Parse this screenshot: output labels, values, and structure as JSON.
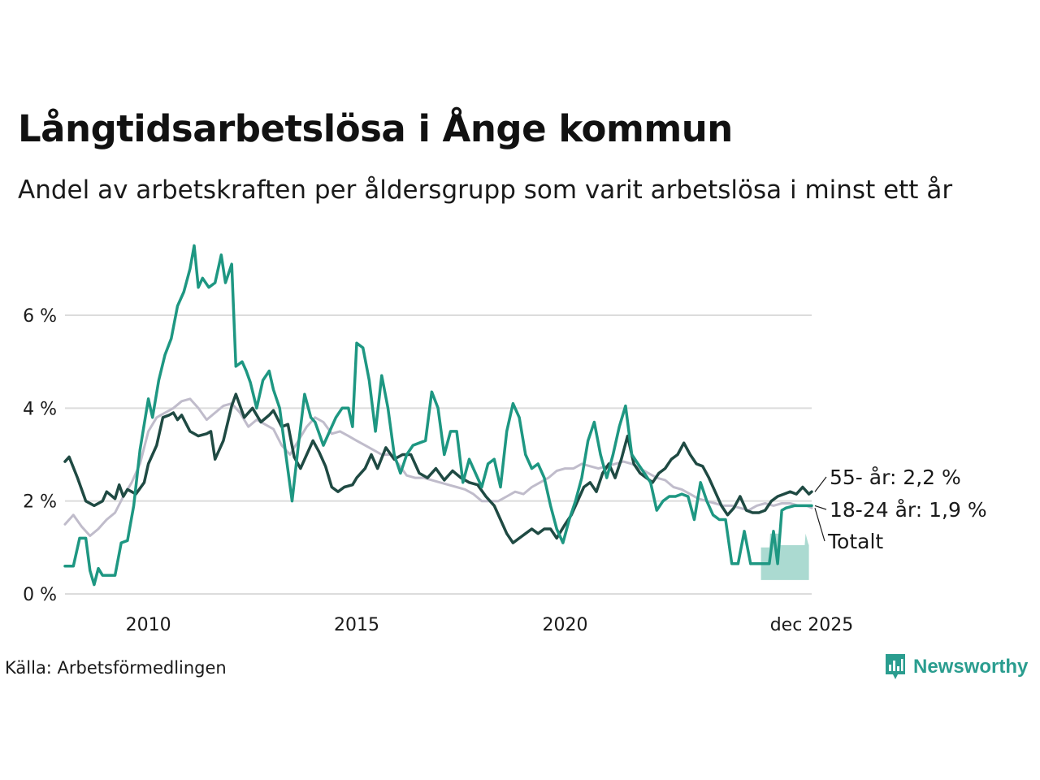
{
  "title": "Långtidsarbetslösa i Ånge kommun",
  "subtitle": "Andel av arbetskraften per åldersgrupp som varit arbetslösa i minst ett år",
  "source": "Källa: Arbetsförmedlingen",
  "brand": "Newsworthy",
  "colors": {
    "young": "#1e9782",
    "old": "#1f4a43",
    "total": "#c0bccb",
    "band": "#a6d8cf",
    "grid": "#dcdcdc"
  },
  "chart_data": {
    "type": "line",
    "x_range": [
      2008.0,
      2025.917
    ],
    "ylim": [
      0,
      7.6
    ],
    "y_ticks": [
      {
        "v": 0,
        "label": "0 %"
      },
      {
        "v": 2,
        "label": "2 %"
      },
      {
        "v": 4,
        "label": "4 %"
      },
      {
        "v": 6,
        "label": "6 %"
      }
    ],
    "x_ticks": [
      {
        "v": 2010,
        "label": "2010"
      },
      {
        "v": 2015,
        "label": "2015"
      },
      {
        "v": 2020,
        "label": "2020"
      },
      {
        "v": 2025.917,
        "label": "dec 2025"
      }
    ],
    "uncertainty_band": {
      "series": "18-24 år",
      "x": [
        2024.7,
        2024.9,
        2024.92,
        2025.15,
        2025.17,
        2025.75,
        2025.77,
        2025.83,
        2025.85
      ],
      "low": [
        0.3,
        0.3,
        0.3,
        0.3,
        0.3,
        0.3,
        0.3,
        0.3,
        0.3
      ],
      "high": [
        1.0,
        1.0,
        1.3,
        1.3,
        1.05,
        1.05,
        1.3,
        1.1,
        1.05
      ]
    },
    "series": [
      {
        "name": "Totalt",
        "label": "Totalt",
        "x": [
          2008.0,
          2008.2,
          2008.4,
          2008.6,
          2008.8,
          2009.0,
          2009.2,
          2009.4,
          2009.6,
          2009.8,
          2010.0,
          2010.2,
          2010.4,
          2010.6,
          2010.8,
          2011.0,
          2011.2,
          2011.4,
          2011.6,
          2011.8,
          2012.0,
          2012.2,
          2012.4,
          2012.6,
          2012.8,
          2013.0,
          2013.2,
          2013.4,
          2013.6,
          2013.8,
          2014.0,
          2014.2,
          2014.4,
          2014.6,
          2014.8,
          2015.0,
          2015.2,
          2015.4,
          2015.6,
          2015.8,
          2016.0,
          2016.2,
          2016.4,
          2016.6,
          2016.8,
          2017.0,
          2017.2,
          2017.4,
          2017.6,
          2017.8,
          2018.0,
          2018.2,
          2018.4,
          2018.6,
          2018.8,
          2019.0,
          2019.2,
          2019.4,
          2019.6,
          2019.8,
          2020.0,
          2020.2,
          2020.4,
          2020.6,
          2020.8,
          2021.0,
          2021.2,
          2021.4,
          2021.6,
          2021.8,
          2022.0,
          2022.2,
          2022.4,
          2022.6,
          2022.8,
          2023.0,
          2023.2,
          2023.4,
          2023.6,
          2023.8,
          2024.0,
          2024.2,
          2024.4,
          2024.6,
          2024.8,
          2025.0,
          2025.2,
          2025.4,
          2025.6,
          2025.8,
          2025.917
        ],
        "values": [
          1.5,
          1.7,
          1.45,
          1.25,
          1.4,
          1.6,
          1.75,
          2.1,
          2.4,
          2.8,
          3.5,
          3.8,
          3.9,
          4.0,
          4.15,
          4.2,
          4.0,
          3.75,
          3.9,
          4.05,
          4.1,
          3.9,
          3.6,
          3.75,
          3.65,
          3.55,
          3.2,
          3.0,
          3.3,
          3.6,
          3.8,
          3.7,
          3.45,
          3.5,
          3.4,
          3.3,
          3.2,
          3.1,
          3.0,
          3.0,
          2.8,
          2.55,
          2.5,
          2.5,
          2.45,
          2.4,
          2.35,
          2.3,
          2.25,
          2.15,
          2.0,
          2.0,
          2.0,
          2.1,
          2.2,
          2.15,
          2.3,
          2.4,
          2.5,
          2.65,
          2.7,
          2.7,
          2.8,
          2.75,
          2.7,
          2.75,
          2.8,
          2.85,
          2.8,
          2.7,
          2.6,
          2.5,
          2.45,
          2.3,
          2.25,
          2.15,
          2.05,
          2.0,
          1.95,
          1.9,
          1.9,
          1.85,
          1.8,
          1.9,
          1.95,
          1.9,
          1.95,
          1.95,
          1.9,
          1.9,
          1.85
        ]
      },
      {
        "name": "55- år",
        "label": "55- år: 2,2 %",
        "x": [
          2008.0,
          2008.1,
          2008.3,
          2008.5,
          2008.7,
          2008.9,
          2009.0,
          2009.2,
          2009.3,
          2009.4,
          2009.5,
          2009.6,
          2009.7,
          2009.9,
          2010.0,
          2010.2,
          2010.35,
          2010.5,
          2010.6,
          2010.7,
          2010.8,
          2011.0,
          2011.2,
          2011.4,
          2011.5,
          2011.6,
          2011.7,
          2011.8,
          2012.0,
          2012.1,
          2012.3,
          2012.5,
          2012.7,
          2012.9,
          2013.0,
          2013.2,
          2013.35,
          2013.5,
          2013.65,
          2013.8,
          2013.95,
          2014.1,
          2014.25,
          2014.4,
          2014.55,
          2014.7,
          2014.9,
          2015.0,
          2015.2,
          2015.35,
          2015.5,
          2015.7,
          2015.9,
          2016.1,
          2016.3,
          2016.5,
          2016.7,
          2016.9,
          2017.1,
          2017.3,
          2017.5,
          2017.7,
          2017.9,
          2018.1,
          2018.3,
          2018.45,
          2018.6,
          2018.75,
          2018.9,
          2019.05,
          2019.2,
          2019.35,
          2019.5,
          2019.65,
          2019.8,
          2020.0,
          2020.15,
          2020.3,
          2020.45,
          2020.6,
          2020.75,
          2020.9,
          2021.05,
          2021.2,
          2021.35,
          2021.5,
          2021.65,
          2021.8,
          2021.95,
          2022.1,
          2022.25,
          2022.4,
          2022.55,
          2022.7,
          2022.85,
          2023.0,
          2023.15,
          2023.3,
          2023.45,
          2023.6,
          2023.75,
          2023.9,
          2024.05,
          2024.2,
          2024.35,
          2024.5,
          2024.65,
          2024.8,
          2024.95,
          2025.1,
          2025.25,
          2025.4,
          2025.55,
          2025.7,
          2025.85,
          2025.917
        ],
        "values": [
          2.85,
          2.95,
          2.5,
          2.0,
          1.9,
          2.0,
          2.2,
          2.05,
          2.35,
          2.1,
          2.25,
          2.2,
          2.15,
          2.4,
          2.8,
          3.2,
          3.8,
          3.85,
          3.9,
          3.75,
          3.85,
          3.5,
          3.4,
          3.45,
          3.5,
          2.9,
          3.1,
          3.3,
          4.05,
          4.3,
          3.8,
          4.0,
          3.7,
          3.85,
          3.95,
          3.6,
          3.65,
          2.95,
          2.7,
          3.0,
          3.3,
          3.05,
          2.75,
          2.3,
          2.2,
          2.3,
          2.35,
          2.5,
          2.7,
          3.0,
          2.7,
          3.15,
          2.9,
          3.0,
          3.0,
          2.6,
          2.5,
          2.7,
          2.45,
          2.65,
          2.5,
          2.4,
          2.35,
          2.1,
          1.9,
          1.6,
          1.3,
          1.1,
          1.2,
          1.3,
          1.4,
          1.3,
          1.4,
          1.4,
          1.2,
          1.5,
          1.7,
          2.0,
          2.3,
          2.4,
          2.2,
          2.6,
          2.8,
          2.5,
          2.9,
          3.4,
          2.8,
          2.6,
          2.5,
          2.4,
          2.6,
          2.7,
          2.9,
          3.0,
          3.25,
          3.0,
          2.8,
          2.75,
          2.5,
          2.2,
          1.9,
          1.7,
          1.85,
          2.1,
          1.8,
          1.75,
          1.75,
          1.8,
          2.0,
          2.1,
          2.15,
          2.2,
          2.15,
          2.3,
          2.15,
          2.2
        ]
      },
      {
        "name": "18-24 år",
        "label": "18-24 år: 1,9 %",
        "x": [
          2008.0,
          2008.2,
          2008.35,
          2008.5,
          2008.6,
          2008.7,
          2008.8,
          2008.9,
          2009.0,
          2009.2,
          2009.35,
          2009.5,
          2009.65,
          2009.8,
          2010.0,
          2010.1,
          2010.25,
          2010.4,
          2010.55,
          2010.7,
          2010.85,
          2011.0,
          2011.1,
          2011.2,
          2011.3,
          2011.45,
          2011.6,
          2011.75,
          2011.85,
          2012.0,
          2012.1,
          2012.25,
          2012.35,
          2012.45,
          2012.6,
          2012.75,
          2012.9,
          2013.0,
          2013.15,
          2013.3,
          2013.45,
          2013.6,
          2013.75,
          2013.9,
          2014.0,
          2014.2,
          2014.35,
          2014.5,
          2014.65,
          2014.8,
          2014.9,
          2015.0,
          2015.15,
          2015.3,
          2015.45,
          2015.6,
          2015.75,
          2015.9,
          2016.05,
          2016.2,
          2016.35,
          2016.5,
          2016.65,
          2016.8,
          2016.95,
          2017.1,
          2017.25,
          2017.4,
          2017.55,
          2017.7,
          2017.85,
          2018.0,
          2018.15,
          2018.3,
          2018.45,
          2018.6,
          2018.75,
          2018.9,
          2019.05,
          2019.2,
          2019.35,
          2019.5,
          2019.65,
          2019.8,
          2019.95,
          2020.1,
          2020.25,
          2020.4,
          2020.55,
          2020.7,
          2020.85,
          2021.0,
          2021.15,
          2021.3,
          2021.45,
          2021.6,
          2021.75,
          2021.9,
          2022.05,
          2022.2,
          2022.35,
          2022.5,
          2022.65,
          2022.8,
          2022.95,
          2023.1,
          2023.25,
          2023.4,
          2023.55,
          2023.7,
          2023.85,
          2024.0,
          2024.15,
          2024.3,
          2024.45,
          2024.6,
          2024.75,
          2024.9,
          2025.0,
          2025.1,
          2025.2,
          2025.3,
          2025.5,
          2025.7,
          2025.75,
          2025.8,
          2025.85,
          2025.917
        ],
        "values": [
          0.6,
          0.6,
          1.2,
          1.2,
          0.5,
          0.2,
          0.55,
          0.4,
          0.4,
          0.4,
          1.1,
          1.15,
          1.9,
          3.1,
          4.2,
          3.8,
          4.6,
          5.15,
          5.5,
          6.2,
          6.5,
          7.0,
          7.5,
          6.6,
          6.8,
          6.6,
          6.7,
          7.3,
          6.7,
          7.1,
          4.9,
          5.0,
          4.8,
          4.55,
          4.0,
          4.6,
          4.8,
          4.4,
          4.0,
          3.0,
          2.0,
          3.2,
          4.3,
          3.8,
          3.7,
          3.2,
          3.5,
          3.8,
          4.0,
          4.0,
          3.6,
          5.4,
          5.3,
          4.6,
          3.5,
          4.7,
          4.0,
          3.0,
          2.6,
          3.0,
          3.2,
          3.25,
          3.3,
          4.35,
          4.0,
          3.0,
          3.5,
          3.5,
          2.4,
          2.9,
          2.6,
          2.3,
          2.8,
          2.9,
          2.3,
          3.5,
          4.1,
          3.8,
          3.0,
          2.7,
          2.8,
          2.5,
          1.9,
          1.4,
          1.1,
          1.6,
          2.0,
          2.5,
          3.3,
          3.7,
          3.0,
          2.5,
          3.0,
          3.6,
          4.05,
          3.0,
          2.8,
          2.6,
          2.4,
          1.8,
          2.0,
          2.1,
          2.1,
          2.15,
          2.1,
          1.6,
          2.4,
          2.0,
          1.7,
          1.6,
          1.6,
          0.65,
          0.65,
          1.35,
          0.65,
          0.65,
          0.65,
          0.65,
          1.35,
          0.65,
          1.8,
          1.85,
          1.9,
          1.9,
          1.9,
          1.9,
          1.9,
          1.9
        ]
      }
    ]
  }
}
